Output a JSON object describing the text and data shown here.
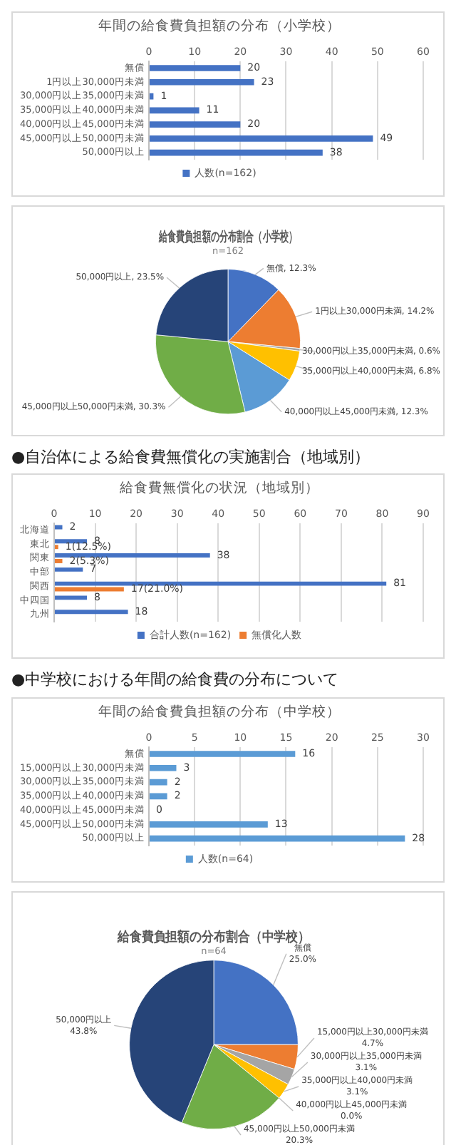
{
  "chart_data": [
    {
      "type": "bar",
      "orientation": "horizontal",
      "title": "年間の給食費負担額の分布（小学校）",
      "categories": [
        "無償",
        "1円以上30,000円未満",
        "30,000円以上35,000円未満",
        "35,000円以上40,000円未満",
        "40,000円以上45,000円未満",
        "45,000円以上50,000円未満",
        "50,000円以上"
      ],
      "series": [
        {
          "name": "人数(n=162)",
          "color": "#4472c4",
          "values": [
            20,
            23,
            1,
            11,
            20,
            49,
            38
          ]
        }
      ],
      "xlim": [
        0,
        60
      ],
      "xticks": [
        0,
        10,
        20,
        30,
        40,
        50,
        60
      ],
      "grid": "x",
      "legend": "bottom",
      "data_labels": true
    },
    {
      "type": "pie",
      "title": "給食費負担額の分布割合（小学校）",
      "subtitle": "n=162",
      "categories": [
        "無償",
        "1円以上30,000円未満",
        "30,000円以上35,000円未満",
        "35,000円以上40,000円未満",
        "40,000円以上45,000円未満",
        "45,000円以上50,000円未満",
        "50,000円以上"
      ],
      "values": [
        12.3,
        14.2,
        0.6,
        6.8,
        12.3,
        30.3,
        23.5
      ],
      "colors": [
        "#4472c4",
        "#ed7d31",
        "#a5a5a5",
        "#ffc000",
        "#5b9bd5",
        "#70ad47",
        "#264478"
      ],
      "value_labels": [
        "12.3%",
        "14.2%",
        "0.6%",
        "6.8%",
        "12.3%",
        "30.3%",
        "23.5%"
      ]
    },
    {
      "type": "bar",
      "orientation": "horizontal",
      "title": "給食費無償化の状況（地域別）",
      "annotations": [
        "●自治体による給食費無償化の実施割合（地域別）"
      ],
      "categories": [
        "北海道",
        "東北",
        "関東",
        "中部",
        "関西",
        "中四国",
        "九州"
      ],
      "series": [
        {
          "name": "合計人数(n=162)",
          "color": "#4472c4",
          "values": [
            2,
            8,
            38,
            7,
            81,
            8,
            18
          ],
          "value_labels": [
            "2",
            "8",
            "38",
            "7",
            "81",
            "8",
            "18"
          ]
        },
        {
          "name": "無償化人数",
          "color": "#ed7d31",
          "values": [
            null,
            1,
            2,
            null,
            17,
            null,
            null
          ],
          "value_labels": [
            null,
            "1(12.5%)",
            "2(5.3%)",
            null,
            "17(21.0%)",
            null,
            null
          ]
        }
      ],
      "xlim": [
        0,
        90
      ],
      "xticks": [
        0,
        10,
        20,
        30,
        40,
        50,
        60,
        70,
        80,
        90
      ],
      "grid": "x",
      "legend": "bottom"
    },
    {
      "type": "bar",
      "orientation": "horizontal",
      "title": "年間の給食費負担額の分布（中学校）",
      "annotations": [
        "●中学校における年間の給食費の分布について"
      ],
      "categories": [
        "無償",
        "15,000円以上30,000円未満",
        "30,000円以上35,000円未満",
        "35,000円以上40,000円未満",
        "40,000円以上45,000円未満",
        "45,000円以上50,000円未満",
        "50,000円以上"
      ],
      "series": [
        {
          "name": "人数(n=64)",
          "color": "#5b9bd5",
          "values": [
            16,
            3,
            2,
            2,
            0,
            13,
            28
          ]
        }
      ],
      "xlim": [
        0,
        30
      ],
      "xticks": [
        0,
        5,
        10,
        15,
        20,
        25,
        30
      ],
      "grid": "x",
      "legend": "bottom",
      "data_labels": true
    },
    {
      "type": "pie",
      "title": "給食費負担額の分布割合（中学校）",
      "subtitle": "n=64",
      "categories": [
        "無償",
        "15,000円以上30,000円未満",
        "30,000円以上35,000円未満",
        "35,000円以上40,000円未満",
        "40,000円以上45,000円未満",
        "45,000円以上50,000円未満",
        "50,000円以上"
      ],
      "values": [
        25.0,
        4.7,
        3.1,
        3.1,
        0.0,
        20.3,
        43.8
      ],
      "colors": [
        "#4472c4",
        "#ed7d31",
        "#a5a5a5",
        "#ffc000",
        "#5b9bd5",
        "#70ad47",
        "#264478"
      ],
      "value_labels": [
        "25.0%",
        "4.7%",
        "3.1%",
        "3.1%",
        "0.0%",
        "20.3%",
        "43.8%"
      ]
    }
  ]
}
